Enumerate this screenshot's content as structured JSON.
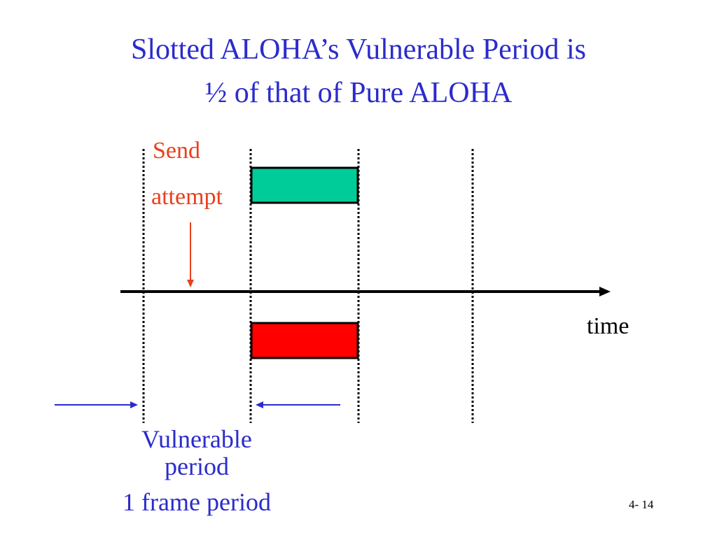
{
  "title": {
    "line1": "Slotted ALOHA’s Vulnerable Period is",
    "line2": "½ of that of Pure ALOHA"
  },
  "send_label": {
    "line1": "Send",
    "line2": "attempt"
  },
  "axis_label": "time",
  "vulnerable_label": {
    "line1": "Vulnerable",
    "line2": "period",
    "line3": "1 frame period"
  },
  "page_number": "4- 14"
}
